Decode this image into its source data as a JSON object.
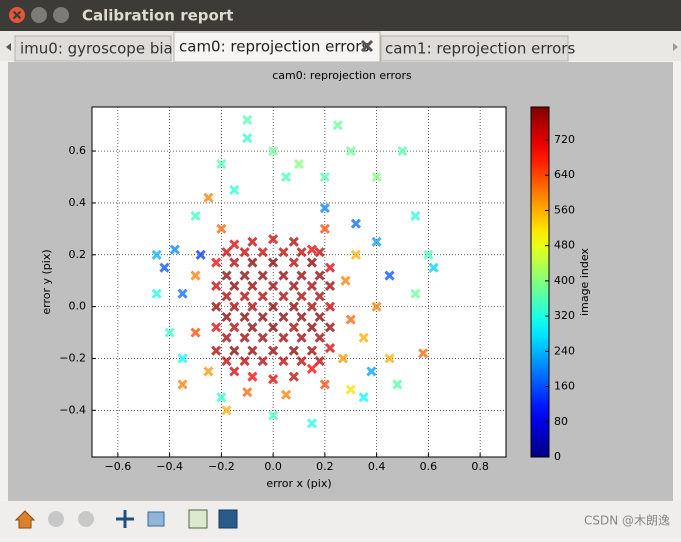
{
  "window": {
    "title": "Calibration report"
  },
  "tabs": [
    "imu0: gyroscope bias",
    "cam0: reprojection errors",
    "cam1: reprojection errors"
  ],
  "watermark": "CSDN @木朗逸",
  "chart_data": {
    "type": "scatter",
    "title": "cam0: reprojection errors",
    "xlabel": "error x (pix)",
    "ylabel": "error y (pix)",
    "colorbar_label": "image index",
    "colormap": "jet",
    "marker": "x",
    "grid": true,
    "xlim": [
      -0.7,
      0.9
    ],
    "xticks": [
      {
        "value": -0.6,
        "label": "−0.6"
      },
      {
        "value": -0.4,
        "label": "−0.4"
      },
      {
        "value": -0.2,
        "label": "−0.2"
      },
      {
        "value": 0,
        "label": "0.0"
      },
      0.2,
      0.4,
      0.6,
      0.8
    ],
    "ylim": [
      -0.58,
      0.77
    ],
    "yticks": [
      {
        "value": -0.4,
        "label": "−0.4"
      },
      {
        "value": -0.2,
        "label": "−0.2"
      },
      {
        "value": 0,
        "label": "0.0"
      },
      0.2,
      0.4,
      0.6
    ],
    "clim": [
      0,
      795
    ],
    "cticks": [
      0,
      80,
      160,
      240,
      320,
      400,
      480,
      560,
      640,
      720
    ],
    "x": [
      -0.42,
      -0.38,
      -0.35,
      -0.28,
      0.2,
      0.32,
      0.4,
      0.45,
      0.38,
      -0.45,
      0.62,
      -0.2,
      -0.1,
      0.0,
      0.1,
      0.2,
      0.3,
      -0.15,
      0.05,
      0.4,
      0.5,
      0.55,
      0.6,
      0.55,
      -0.4,
      -0.35,
      -0.2,
      0.0,
      0.15,
      0.35,
      -0.45,
      -0.1,
      0.25,
      -0.3,
      0.48,
      0.28,
      0.3,
      0.27,
      0.2,
      0.05,
      -0.1,
      -0.25,
      -0.3,
      -0.3,
      -0.2,
      0.2,
      0.32,
      0.35,
      0.4,
      0.3,
      -0.18,
      -0.35,
      0.45,
      0.58,
      -0.25,
      -0.22,
      -0.22,
      -0.22,
      -0.22,
      -0.22,
      -0.15,
      -0.15,
      -0.15,
      -0.15,
      -0.15,
      -0.15,
      -0.15,
      -0.08,
      -0.08,
      -0.08,
      -0.08,
      -0.08,
      -0.08,
      -0.08,
      0,
      0,
      0,
      0,
      0,
      0,
      0,
      0.08,
      0.08,
      0.08,
      0.08,
      0.08,
      0.08,
      0.08,
      0.15,
      0.15,
      0.15,
      0.15,
      0.15,
      0.15,
      0.15,
      0.22,
      0.22,
      0.22,
      0.22,
      0.22,
      -0.18,
      -0.18,
      -0.18,
      -0.18,
      -0.18,
      -0.18,
      -0.11,
      -0.11,
      -0.11,
      -0.11,
      -0.11,
      -0.11,
      -0.04,
      -0.04,
      -0.04,
      -0.04,
      -0.04,
      -0.04,
      0.04,
      0.04,
      0.04,
      0.04,
      0.04,
      0.04,
      0.11,
      0.11,
      0.11,
      0.11,
      0.11,
      0.11,
      0.18,
      0.18,
      0.18,
      0.18,
      0.18,
      0.18
    ],
    "y": [
      0.15,
      0.22,
      0.05,
      0.2,
      0.38,
      0.32,
      0.25,
      0.12,
      -0.25,
      0.2,
      0.15,
      0.55,
      0.65,
      0.6,
      0.55,
      0.5,
      0.6,
      0.45,
      0.5,
      0.5,
      0.6,
      0.35,
      0.2,
      0.05,
      -0.1,
      -0.2,
      -0.35,
      -0.42,
      -0.45,
      -0.35,
      0.05,
      0.72,
      0.7,
      0.35,
      -0.3,
      0.1,
      -0.05,
      -0.2,
      -0.3,
      -0.34,
      -0.33,
      -0.25,
      -0.1,
      0.12,
      0.3,
      0.3,
      0.2,
      -0.12,
      0.0,
      -0.32,
      -0.4,
      -0.3,
      -0.2,
      -0.18,
      0.42,
      -0.17,
      -0.08,
      0,
      0.08,
      0.17,
      -0.25,
      -0.17,
      -0.08,
      0,
      0.08,
      0.17,
      0.24,
      -0.27,
      -0.17,
      -0.08,
      0,
      0.08,
      0.17,
      0.25,
      -0.28,
      -0.17,
      -0.08,
      0,
      0.08,
      0.17,
      0.26,
      -0.27,
      -0.17,
      -0.08,
      0,
      0.08,
      0.17,
      0.25,
      -0.24,
      -0.17,
      -0.08,
      0,
      0.08,
      0.17,
      0.22,
      -0.16,
      -0.08,
      0,
      0.08,
      0.15,
      -0.21,
      -0.12,
      -0.04,
      0.04,
      0.12,
      0.21,
      -0.21,
      -0.12,
      -0.04,
      0.04,
      0.12,
      0.21,
      -0.21,
      -0.12,
      -0.04,
      0.04,
      0.12,
      0.21,
      -0.21,
      -0.12,
      -0.04,
      0.04,
      0.12,
      0.21,
      -0.21,
      -0.12,
      -0.04,
      0.04,
      0.12,
      0.21,
      -0.21,
      -0.12,
      -0.04,
      0.04,
      0.12,
      0.21
    ],
    "c": [
      160,
      200,
      180,
      140,
      200,
      180,
      220,
      160,
      220,
      240,
      260,
      360,
      340,
      380,
      400,
      360,
      380,
      330,
      350,
      400,
      360,
      330,
      350,
      380,
      340,
      300,
      330,
      350,
      320,
      300,
      320,
      360,
      380,
      340,
      360,
      600,
      620,
      580,
      640,
      600,
      620,
      580,
      640,
      600,
      620,
      640,
      560,
      560,
      600,
      520,
      560,
      600,
      560,
      620,
      600,
      760,
      720,
      780,
      740,
      700,
      730,
      790,
      750,
      770,
      790,
      760,
      720,
      700,
      780,
      790,
      760,
      780,
      790,
      740,
      720,
      770,
      790,
      785,
      770,
      790,
      730,
      740,
      790,
      760,
      790,
      780,
      750,
      760,
      700,
      770,
      790,
      760,
      770,
      790,
      710,
      730,
      780,
      740,
      770,
      720,
      750,
      770,
      790,
      760,
      780,
      740,
      750,
      770,
      790,
      760,
      780,
      740,
      750,
      770,
      790,
      760,
      780,
      740,
      750,
      770,
      790,
      760,
      780,
      740,
      750,
      770,
      790,
      760,
      780,
      740,
      750,
      770,
      790,
      760,
      780,
      740
    ]
  }
}
